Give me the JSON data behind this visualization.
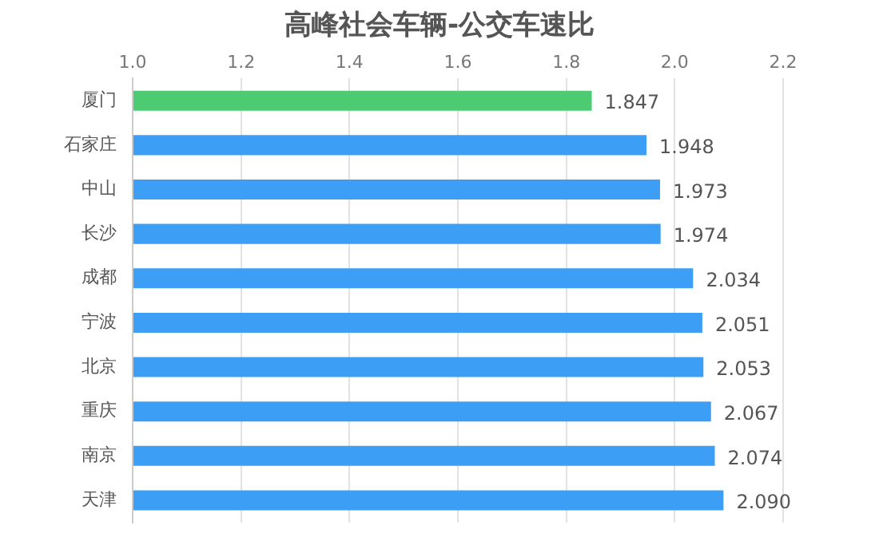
{
  "chart_data": {
    "type": "bar",
    "orientation": "horizontal",
    "title": "高峰社会车辆-公交车速比",
    "categories": [
      "厦门",
      "石家庄",
      "中山",
      "长沙",
      "成都",
      "宁波",
      "北京",
      "重庆",
      "南京",
      "天津"
    ],
    "values": [
      1.847,
      1.948,
      1.973,
      1.974,
      2.034,
      2.051,
      2.053,
      2.067,
      2.074,
      2.09
    ],
    "colors": [
      "#4ccb72",
      "#3c9ff5",
      "#3c9ff5",
      "#3c9ff5",
      "#3c9ff5",
      "#3c9ff5",
      "#3c9ff5",
      "#3c9ff5",
      "#3c9ff5",
      "#3c9ff5"
    ],
    "xlim": [
      1.0,
      2.2
    ],
    "xticks": [
      {
        "value": 1.0,
        "label": "1.0"
      },
      {
        "value": 1.2,
        "label": "1.2"
      },
      {
        "value": 1.4,
        "label": "1.4"
      },
      {
        "value": 1.6,
        "label": "1.6"
      },
      {
        "value": 1.8,
        "label": "1.8"
      },
      {
        "value": 2.0,
        "label": "2.0"
      },
      {
        "value": 2.2,
        "label": "2.2"
      }
    ],
    "value_labels": [
      "1.847",
      "1.948",
      "1.973",
      "1.974",
      "2.034",
      "2.051",
      "2.053",
      "2.067",
      "2.074",
      "2.090"
    ],
    "grid": "x"
  }
}
